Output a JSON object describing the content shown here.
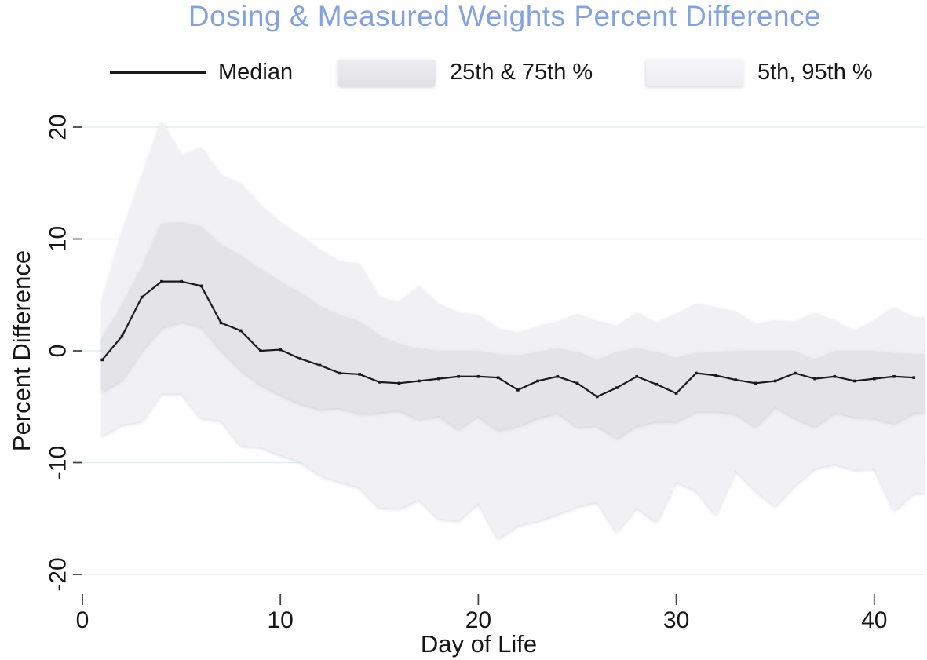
{
  "colors": {
    "title_text": "#84a3de",
    "median_line": "#1a1a1a",
    "band_inner_25_75": "#e4e4e6",
    "band_outer_5_95": "#f1f1f3",
    "gridline": "#e3eeee",
    "tick_mark": "#444444",
    "background": "#ffffff"
  },
  "legend": {
    "items": [
      {
        "label": "Median",
        "swatch": "line"
      },
      {
        "label": "25th & 75th %",
        "swatch": "box-dark"
      },
      {
        "label": "5th, 95th %",
        "swatch": "box-light"
      }
    ]
  },
  "chart_data": {
    "type": "line",
    "title": "Dosing & Measured Weights Percent Difference",
    "xlabel": "Day of Life",
    "ylabel": "Percent Difference",
    "xlim": [
      0,
      42.5
    ],
    "ylim": [
      -21,
      21
    ],
    "x_ticks": [
      0,
      10,
      20,
      30,
      40
    ],
    "y_ticks": [
      20,
      10,
      0,
      -10,
      -20
    ],
    "grid": true,
    "legend_position": "top-center",
    "x": [
      1,
      2,
      3,
      4,
      5,
      6,
      7,
      8,
      9,
      10,
      11,
      12,
      13,
      14,
      15,
      16,
      17,
      18,
      19,
      20,
      21,
      22,
      23,
      24,
      25,
      26,
      27,
      28,
      29,
      30,
      31,
      32,
      33,
      34,
      35,
      36,
      37,
      38,
      39,
      40,
      41,
      42
    ],
    "series": [
      {
        "name": "Median",
        "render": "line",
        "values": [
          -0.8,
          1.3,
          4.8,
          6.2,
          6.2,
          5.8,
          2.5,
          1.8,
          0.0,
          0.1,
          -0.7,
          -1.3,
          -2.0,
          -2.1,
          -2.8,
          -2.9,
          -2.7,
          -2.5,
          -2.3,
          -2.3,
          -2.4,
          -3.5,
          -2.7,
          -2.3,
          -2.9,
          -4.1,
          -3.3,
          -2.3,
          -3.0,
          -3.8,
          -2.0,
          -2.2,
          -2.6,
          -2.9,
          -2.7,
          -2.0,
          -2.5,
          -2.3,
          -2.7,
          -2.5,
          -2.3,
          -2.4
        ]
      },
      {
        "name": "25th & 75th %",
        "render": "band",
        "upper": [
          1.1,
          4.1,
          7.4,
          11.4,
          11.5,
          11.1,
          9.5,
          8.5,
          7.3,
          6.2,
          5.2,
          4.0,
          3.2,
          2.6,
          1.4,
          0.6,
          0.2,
          0.0,
          0.0,
          0.0,
          -0.3,
          -0.4,
          -0.1,
          0.2,
          -0.1,
          -0.8,
          -0.1,
          0.2,
          -0.1,
          -0.6,
          -0.2,
          -0.1,
          0.0,
          0.0,
          0.0,
          0.0,
          -0.8,
          0.0,
          0.0,
          0.0,
          -0.2,
          -0.3
        ],
        "lower": [
          -3.6,
          -2.6,
          0.0,
          2.1,
          2.6,
          2.2,
          0.1,
          -1.7,
          -3.0,
          -3.9,
          -4.7,
          -5.2,
          -5.1,
          -5.6,
          -5.5,
          -5.3,
          -6.1,
          -5.8,
          -7.0,
          -5.8,
          -7.1,
          -6.7,
          -6.0,
          -5.5,
          -6.8,
          -6.7,
          -7.8,
          -6.7,
          -6.3,
          -6.3,
          -5.4,
          -5.4,
          -5.6,
          -6.8,
          -5.0,
          -6.0,
          -6.8,
          -5.5,
          -5.9,
          -6.0,
          -6.5,
          -5.5
        ]
      },
      {
        "name": "5th, 95th %",
        "render": "band",
        "upper": [
          4.5,
          10.5,
          15.5,
          20.6,
          17.4,
          18.2,
          15.7,
          15.0,
          13.0,
          11.5,
          10.3,
          9.0,
          8.0,
          7.8,
          4.8,
          4.4,
          5.8,
          4.2,
          3.4,
          3.2,
          2.0,
          1.6,
          2.2,
          2.6,
          3.3,
          2.7,
          2.2,
          3.4,
          2.5,
          3.3,
          4.2,
          3.9,
          3.5,
          2.4,
          2.7,
          2.6,
          3.4,
          2.7,
          1.8,
          2.7,
          3.9,
          3.0
        ],
        "lower": [
          -7.6,
          -6.6,
          -6.3,
          -3.8,
          -3.8,
          -6.0,
          -6.2,
          -8.5,
          -8.6,
          -9.3,
          -9.9,
          -11.1,
          -11.7,
          -12.2,
          -14.0,
          -14.1,
          -13.3,
          -15.0,
          -15.2,
          -13.6,
          -16.8,
          -15.6,
          -15.2,
          -14.6,
          -13.9,
          -13.5,
          -16.2,
          -14.0,
          -15.3,
          -11.7,
          -12.5,
          -14.7,
          -10.7,
          -12.5,
          -13.9,
          -12.0,
          -10.5,
          -10.1,
          -10.6,
          -10.5,
          -14.3,
          -12.7
        ]
      }
    ]
  }
}
